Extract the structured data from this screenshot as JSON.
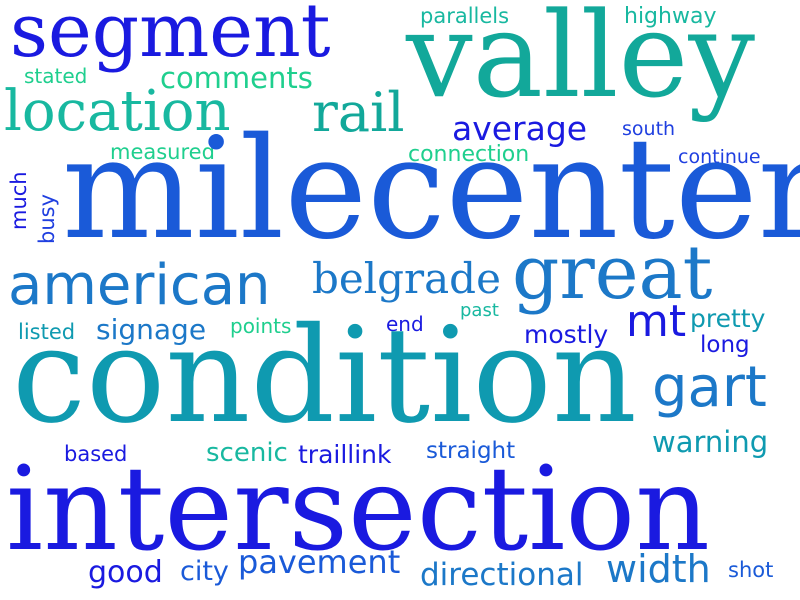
{
  "words": {
    "segment": "segment",
    "valley": "valley",
    "parallels": "parallels",
    "highway": "highway",
    "stated": "stated",
    "comments": "comments",
    "location": "location",
    "rail": "rail",
    "average": "average",
    "south": "south",
    "measured": "measured",
    "connection": "connection",
    "continue": "continue",
    "much": "much",
    "busy": "busy",
    "milecenter": "milecenter",
    "american": "american",
    "belgrade": "belgrade",
    "great": "great",
    "listed": "listed",
    "signage": "signage",
    "points": "points",
    "end": "end",
    "past": "past",
    "mostly": "mostly",
    "mt": "mt",
    "pretty": "pretty",
    "long": "long",
    "condition": "condition",
    "gart": "gart",
    "warning": "warning",
    "based": "based",
    "scenic": "scenic",
    "traillink": "traillink",
    "straight": "straight",
    "intersection": "intersection",
    "good": "good",
    "city": "city",
    "pavement": "pavement",
    "directional": "directional",
    "width": "width",
    "shot": "shot"
  }
}
